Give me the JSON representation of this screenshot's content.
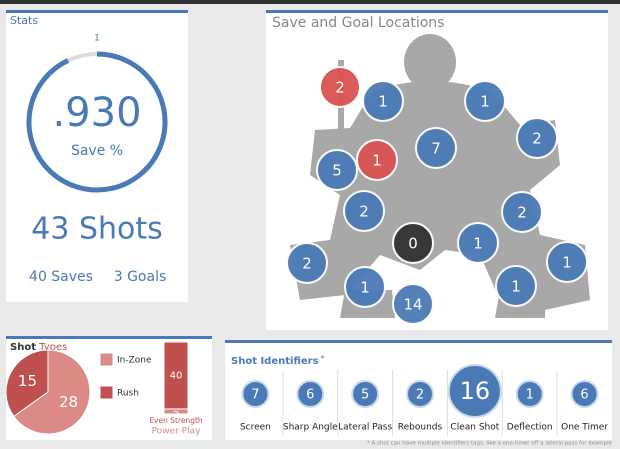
{
  "stats": {
    "title": "Stats",
    "ring_max": 1,
    "save_pct": {
      "value": 0.93,
      "label": ".930"
    },
    "save_label": "Save %",
    "shots": "43 Shots",
    "saves": "40 Saves",
    "goals": "3 Goals"
  },
  "locations": {
    "title": "Save and Goal Locations",
    "markers": [
      {
        "label": "2",
        "kind": "goal"
      },
      {
        "label": "1",
        "kind": "save"
      },
      {
        "label": "1",
        "kind": "save"
      },
      {
        "label": "2",
        "kind": "save"
      },
      {
        "label": "7",
        "kind": "save"
      },
      {
        "label": "5",
        "kind": "save"
      },
      {
        "label": "1",
        "kind": "goal"
      },
      {
        "label": "2",
        "kind": "save"
      },
      {
        "label": "2",
        "kind": "save"
      },
      {
        "label": "0",
        "kind": "empty"
      },
      {
        "label": "1",
        "kind": "save"
      },
      {
        "label": "2",
        "kind": "save"
      },
      {
        "label": "1",
        "kind": "save"
      },
      {
        "label": "1",
        "kind": "save"
      },
      {
        "label": "1",
        "kind": "save"
      },
      {
        "label": "14",
        "kind": "save"
      }
    ]
  },
  "shot_types": {
    "title_bold": "Shot",
    "title_light": "Types",
    "pie": [
      {
        "name": "In-Zone",
        "value": 28,
        "color": "#db8a86"
      },
      {
        "name": "Rush",
        "value": 15,
        "color": "#c0504d"
      }
    ],
    "bar": [
      {
        "name": "Even Strength",
        "value": 40,
        "color": "#c0504d"
      },
      {
        "name": "Power Play",
        "value": 3,
        "color": "#db8a86"
      }
    ]
  },
  "identifiers": {
    "title": "Shot Identifiers",
    "asterisk": "*",
    "items": [
      {
        "value": "7",
        "label": "Screen"
      },
      {
        "value": "6",
        "label": "Sharp Angle"
      },
      {
        "value": "5",
        "label": "Lateral Pass"
      },
      {
        "value": "2",
        "label": "Rebounds"
      },
      {
        "value": "16",
        "label": "Clean Shot"
      },
      {
        "value": "1",
        "label": "Deflection"
      },
      {
        "value": "6",
        "label": "One Timer"
      }
    ],
    "footnote": "* A shot can have multiple identifiers tags, like a one-timer off a lateral pass for example"
  }
}
